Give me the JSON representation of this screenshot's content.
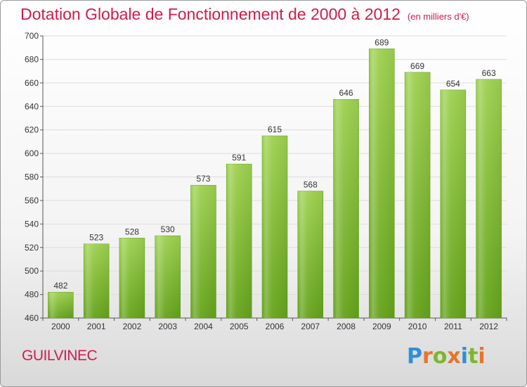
{
  "header": {
    "title": "Dotation Globale de Fonctionnement de 2000 à 2012",
    "subtitle": "(en milliers d'€)"
  },
  "footer": {
    "commune": "GUILVINEC",
    "logo_letters": [
      {
        "ch": "P",
        "color": "#2f8fd8"
      },
      {
        "ch": "r",
        "color": "#e8742a"
      },
      {
        "ch": "o",
        "color": "#7ab82a"
      },
      {
        "ch": "x",
        "color": "#e8742a"
      },
      {
        "ch": "i",
        "color": "#2f8fd8"
      },
      {
        "ch": "t",
        "color": "#7ab82a"
      },
      {
        "ch": "i",
        "color": "#e8742a"
      }
    ]
  },
  "chart_data": {
    "type": "bar",
    "categories": [
      "2000",
      "2001",
      "2002",
      "2003",
      "2004",
      "2005",
      "2006",
      "2007",
      "2008",
      "2009",
      "2010",
      "2011",
      "2012"
    ],
    "values": [
      482,
      523,
      528,
      530,
      573,
      591,
      615,
      568,
      646,
      689,
      669,
      654,
      663
    ],
    "title": "Dotation Globale de Fonctionnement de 2000 à 2012",
    "subtitle": "(en milliers d'€)",
    "xlabel": "",
    "ylabel": "",
    "ylim": [
      460,
      700
    ],
    "yticks": [
      460,
      480,
      500,
      520,
      540,
      560,
      580,
      600,
      620,
      640,
      660,
      680,
      700
    ],
    "grid": true,
    "bar_color": "#8cc63f",
    "bar_color_dark": "#6aa71d"
  }
}
